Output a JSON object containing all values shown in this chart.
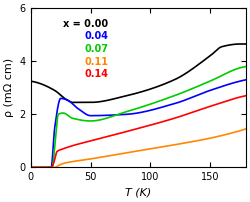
{
  "title": "",
  "xlabel": "T (K)",
  "ylabel": "ρ (mΩ cm)",
  "xlim": [
    0,
    180
  ],
  "ylim": [
    0,
    6
  ],
  "xticks": [
    0,
    50,
    100,
    150
  ],
  "yticks": [
    0,
    2,
    4,
    6
  ],
  "legend_labels": [
    "x = 0.00",
    "0.04",
    "0.07",
    "0.11",
    "0.14"
  ],
  "legend_colors": [
    "black",
    "#0000ff",
    "#00cc00",
    "#ff8800",
    "#ff0000"
  ],
  "background_color": "#ffffff",
  "figsize": [
    2.5,
    2.02
  ],
  "dpi": 100,
  "curve_x000": {
    "T_pts": [
      0,
      5,
      20,
      30,
      35,
      50,
      80,
      120,
      150,
      160,
      175,
      180
    ],
    "rho_pts": [
      3.25,
      3.2,
      2.9,
      2.55,
      2.45,
      2.45,
      2.7,
      3.3,
      4.2,
      4.55,
      4.65,
      4.65
    ]
  },
  "curve_x004": {
    "T_pts": [
      0,
      17,
      20,
      25,
      30,
      40,
      50,
      80,
      120,
      150,
      175,
      180
    ],
    "rho_pts": [
      0.0,
      0.0,
      1.5,
      2.6,
      2.55,
      2.2,
      1.95,
      2.0,
      2.4,
      2.9,
      3.25,
      3.3
    ]
  },
  "curve_x007": {
    "T_pts": [
      0,
      18,
      20,
      23,
      27,
      35,
      50,
      80,
      120,
      150,
      175,
      180
    ],
    "rho_pts": [
      0.0,
      0.0,
      0.8,
      2.0,
      2.05,
      1.85,
      1.75,
      2.1,
      2.7,
      3.25,
      3.75,
      3.8
    ]
  },
  "curve_x011": {
    "T_pts": [
      0,
      20,
      23,
      28,
      35,
      50,
      80,
      120,
      150,
      175,
      180
    ],
    "rho_pts": [
      0.0,
      0.0,
      0.07,
      0.16,
      0.22,
      0.32,
      0.55,
      0.85,
      1.1,
      1.38,
      1.45
    ]
  },
  "curve_x014": {
    "T_pts": [
      0,
      17,
      19,
      22,
      27,
      35,
      50,
      80,
      120,
      150,
      175,
      180
    ],
    "rho_pts": [
      0.0,
      0.0,
      0.15,
      0.6,
      0.7,
      0.82,
      1.0,
      1.35,
      1.85,
      2.3,
      2.65,
      2.7
    ]
  }
}
